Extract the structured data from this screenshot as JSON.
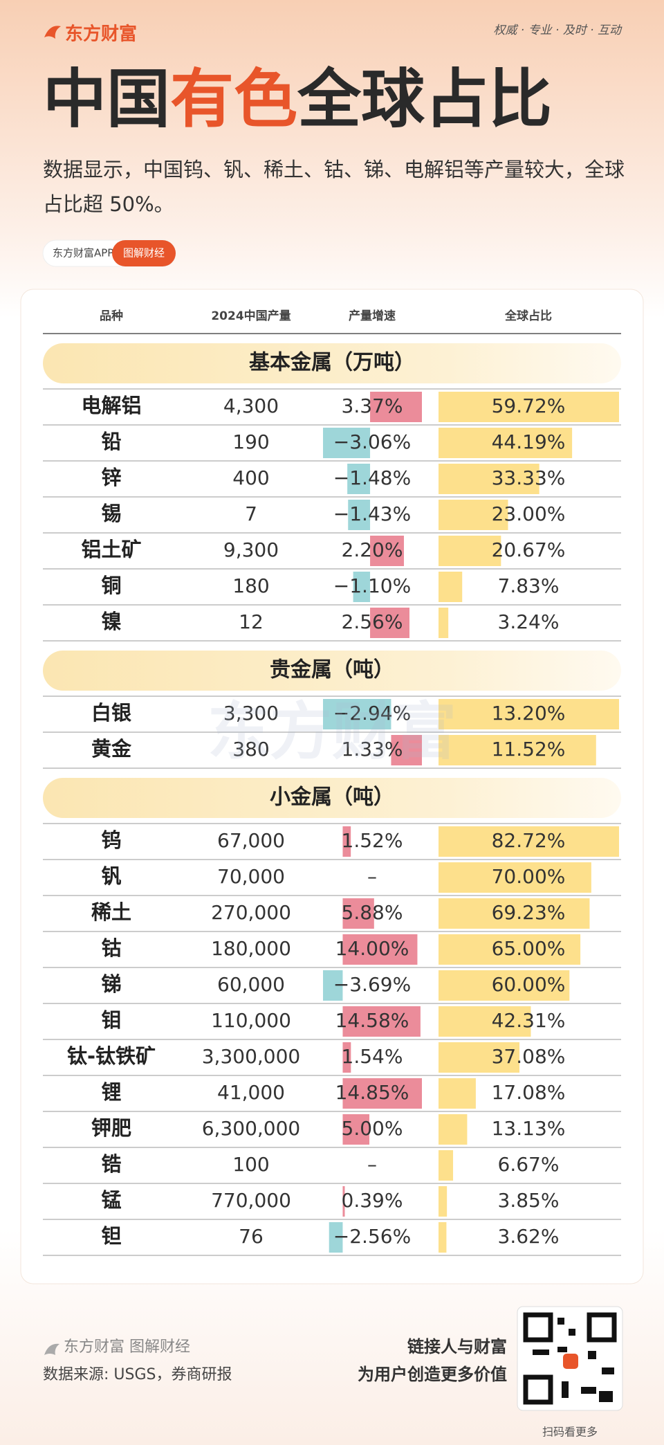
{
  "header": {
    "logo": "东方财富",
    "slogan": "权威 · 专业 · 及时 · 互动",
    "title": [
      "中国",
      "有色",
      "全球占比"
    ],
    "subtitle": "数据显示，中国钨、钒、稀土、钴、锑、电解铝等产量较大，全球占比超 50%。",
    "pill_left": "东方财富APP",
    "pill_right": "图解财经"
  },
  "table": {
    "columns": [
      "品种",
      "2024中国产量",
      "产量增速",
      "全球占比"
    ],
    "groups": [
      {
        "title": "基本金属（万吨）",
        "rows": [
          {
            "name": "电解铝",
            "output": "4,300",
            "growth": 3.37,
            "growth_label": "3.37%",
            "share": 59.72,
            "share_label": "59.72%"
          },
          {
            "name": "铅",
            "output": "190",
            "growth": -3.06,
            "growth_label": "−3.06%",
            "share": 44.19,
            "share_label": "44.19%"
          },
          {
            "name": "锌",
            "output": "400",
            "growth": -1.48,
            "growth_label": "−1.48%",
            "share": 33.33,
            "share_label": "33.33%"
          },
          {
            "name": "锡",
            "output": "7",
            "growth": -1.43,
            "growth_label": "−1.43%",
            "share": 23.0,
            "share_label": "23.00%"
          },
          {
            "name": "铝土矿",
            "output": "9,300",
            "growth": 2.2,
            "growth_label": "2.20%",
            "share": 20.67,
            "share_label": "20.67%"
          },
          {
            "name": "铜",
            "output": "180",
            "growth": -1.1,
            "growth_label": "−1.10%",
            "share": 7.83,
            "share_label": "7.83%"
          },
          {
            "name": "镍",
            "output": "12",
            "growth": 2.56,
            "growth_label": "2.56%",
            "share": 3.24,
            "share_label": "3.24%"
          }
        ]
      },
      {
        "title": "贵金属（吨）",
        "rows": [
          {
            "name": "白银",
            "output": "3,300",
            "growth": -2.94,
            "growth_label": "−2.94%",
            "share": 13.2,
            "share_label": "13.20%"
          },
          {
            "name": "黄金",
            "output": "380",
            "growth": 1.33,
            "growth_label": "1.33%",
            "share": 11.52,
            "share_label": "11.52%"
          }
        ]
      },
      {
        "title": "小金属（吨）",
        "rows": [
          {
            "name": "钨",
            "output": "67,000",
            "growth": 1.52,
            "growth_label": "1.52%",
            "share": 82.72,
            "share_label": "82.72%"
          },
          {
            "name": "钒",
            "output": "70,000",
            "growth": null,
            "growth_label": "–",
            "share": 70.0,
            "share_label": "70.00%"
          },
          {
            "name": "稀土",
            "output": "270,000",
            "growth": 5.88,
            "growth_label": "5.88%",
            "share": 69.23,
            "share_label": "69.23%"
          },
          {
            "name": "钴",
            "output": "180,000",
            "growth": 14.0,
            "growth_label": "14.00%",
            "share": 65.0,
            "share_label": "65.00%"
          },
          {
            "name": "锑",
            "output": "60,000",
            "growth": -3.69,
            "growth_label": "−3.69%",
            "share": 60.0,
            "share_label": "60.00%"
          },
          {
            "name": "钼",
            "output": "110,000",
            "growth": 14.58,
            "growth_label": "14.58%",
            "share": 42.31,
            "share_label": "42.31%"
          },
          {
            "name": "钛-钛铁矿",
            "output": "3,300,000",
            "growth": 1.54,
            "growth_label": "1.54%",
            "share": 37.08,
            "share_label": "37.08%"
          },
          {
            "name": "锂",
            "output": "41,000",
            "growth": 14.85,
            "growth_label": "14.85%",
            "share": 17.08,
            "share_label": "17.08%"
          },
          {
            "name": "钾肥",
            "output": "6,300,000",
            "growth": 5.0,
            "growth_label": "5.00%",
            "share": 13.13,
            "share_label": "13.13%"
          },
          {
            "name": "锆",
            "output": "100",
            "growth": null,
            "growth_label": "–",
            "share": 6.67,
            "share_label": "6.67%"
          },
          {
            "name": "锰",
            "output": "770,000",
            "growth": 0.39,
            "growth_label": "0.39%",
            "share": 3.85,
            "share_label": "3.85%"
          },
          {
            "name": "钽",
            "output": "76",
            "growth": -2.56,
            "growth_label": "−2.56%",
            "share": 3.62,
            "share_label": "3.62%"
          }
        ]
      }
    ],
    "watermark": "东方财富"
  },
  "footer": {
    "brand": "东方财富 图解财经",
    "source": "数据来源: USGS，券商研报",
    "motto1": "链接人与财富",
    "motto2": "为用户创造更多价值",
    "qr_caption": "扫码看更多"
  }
}
